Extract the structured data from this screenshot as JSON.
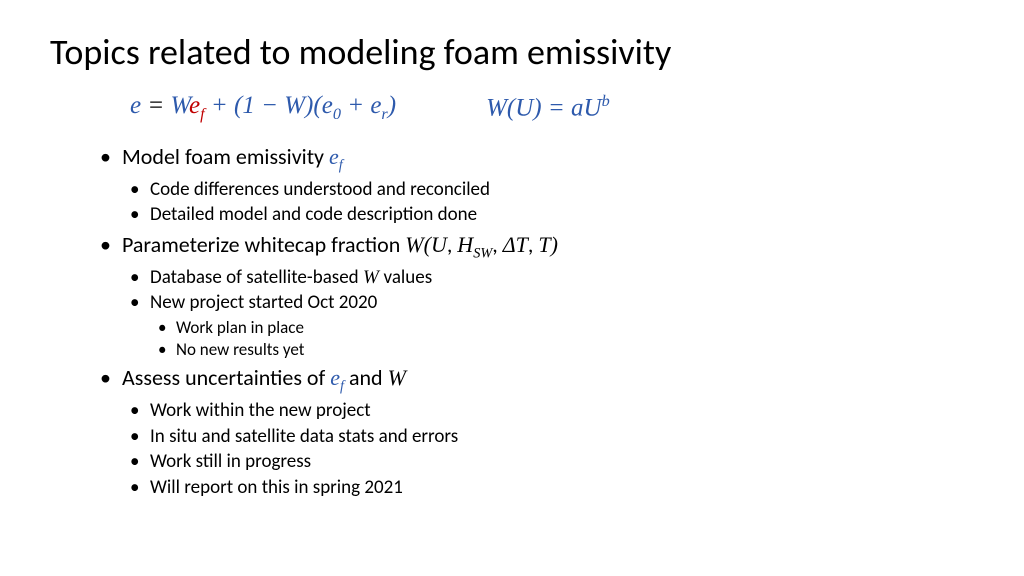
{
  "title": "Topics related to modeling foam emissivity",
  "eq1": {
    "parts": [
      {
        "t": "e",
        "cls": "blue"
      },
      {
        "t": " = ",
        "cls": ""
      },
      {
        "t": "W",
        "cls": "blue"
      },
      {
        "t": "e",
        "cls": "red"
      },
      {
        "t": "f",
        "cls": "red sub"
      },
      {
        "t": " + (1 − ",
        "cls": "blue"
      },
      {
        "t": "W",
        "cls": "blue"
      },
      {
        "t": ")(",
        "cls": "blue"
      },
      {
        "t": "e",
        "cls": "blue"
      },
      {
        "t": "0",
        "cls": "blue sub"
      },
      {
        "t": " +  ",
        "cls": "blue"
      },
      {
        "t": "e",
        "cls": "blue"
      },
      {
        "t": "r",
        "cls": "blue sub"
      },
      {
        "t": ")",
        "cls": "blue"
      }
    ]
  },
  "eq2": {
    "parts": [
      {
        "t": "W",
        "cls": "blue"
      },
      {
        "t": "(",
        "cls": "blue"
      },
      {
        "t": "U",
        "cls": "blue"
      },
      {
        "t": ") = ",
        "cls": "blue"
      },
      {
        "t": "a",
        "cls": "blue"
      },
      {
        "t": "U",
        "cls": "blue"
      },
      {
        "t": "b",
        "cls": "blue sup"
      }
    ]
  },
  "bullets": {
    "b1": "Model foam emissivity ",
    "b1_ef_e": "e",
    "b1_ef_f": "f",
    "b1_sub1": "Code differences understood and reconciled",
    "b1_sub2": "Detailed model and code description done",
    "b2a": "Parameterize whitecap fraction  ",
    "b2_W": "W",
    "b2_paren_open": "(",
    "b2_U": "U",
    "b2_c1": ", ",
    "b2_H": "H",
    "b2_SW": "SW",
    "b2_c2": ", ",
    "b2_dT": "ΔT",
    "b2_c3": ", ",
    "b2_T": "T",
    "b2_paren_close": ")",
    "b2_sub1a": "Database of satellite-based  ",
    "b2_sub1_W": "W ",
    "b2_sub1b": "values",
    "b2_sub2": "New project started Oct 2020",
    "b2_sub2_a": "Work plan in place",
    "b2_sub2_b": "No new results yet",
    "b3a": "Assess uncertainties of ",
    "b3_ef_e": "e",
    "b3_ef_f": "f",
    "b3b": " and  ",
    "b3_W": "W",
    "b3_sub1": "Work within the new project",
    "b3_sub2": "In situ and satellite data stats and errors",
    "b3_sub3": "Work still in progress",
    "b3_sub4": "Will report on this in spring 2021"
  },
  "colors": {
    "blue": "#2e5aac",
    "red": "#c00000",
    "text": "#000000",
    "bg": "#ffffff"
  },
  "fonts": {
    "title_pt": 36,
    "l1_pt": 22,
    "l2_pt": 19,
    "l3_pt": 17,
    "eq_pt": 25
  }
}
